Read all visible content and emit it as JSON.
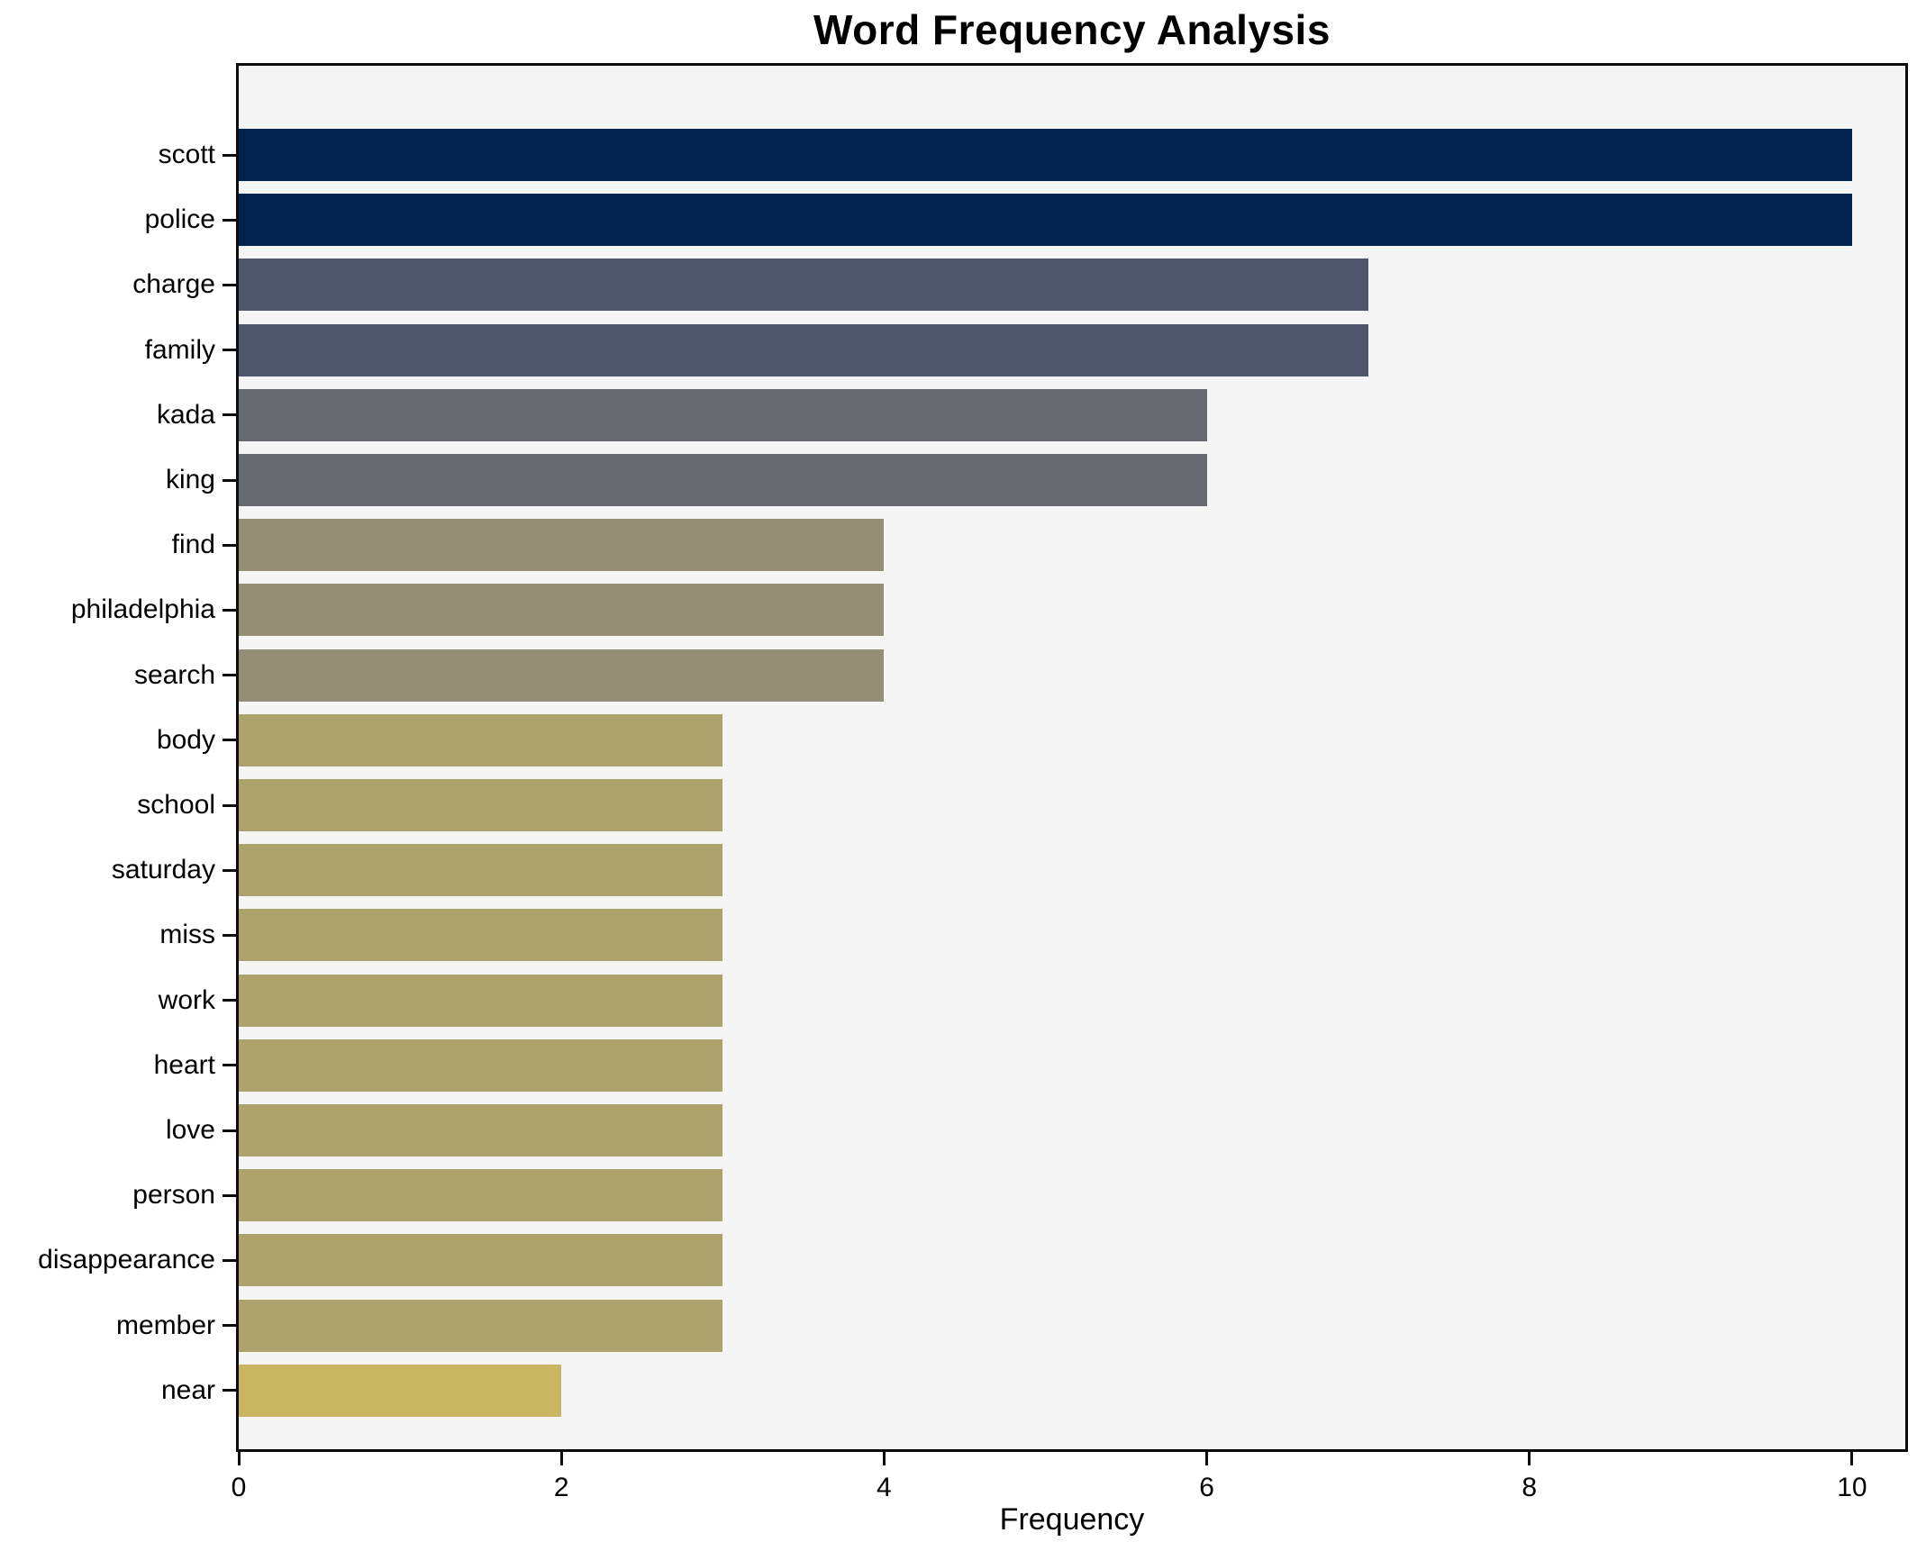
{
  "chart_data": {
    "type": "bar",
    "orientation": "horizontal",
    "title": "Word Frequency Analysis",
    "xlabel": "Frequency",
    "ylabel": "",
    "grid": false,
    "legend": false,
    "xlim": [
      0,
      10.33
    ],
    "x_ticks": [
      0,
      2,
      4,
      6,
      8,
      10
    ],
    "categories": [
      "scott",
      "police",
      "charge",
      "family",
      "kada",
      "king",
      "find",
      "philadelphia",
      "search",
      "body",
      "school",
      "saturday",
      "miss",
      "work",
      "heart",
      "love",
      "person",
      "disappearance",
      "member",
      "near"
    ],
    "values": [
      10,
      10,
      7,
      7,
      6,
      6,
      4,
      4,
      4,
      3,
      3,
      3,
      3,
      3,
      3,
      3,
      3,
      3,
      3,
      2
    ],
    "bar_colors": [
      "#02234e",
      "#02234e",
      "#4d566b",
      "#4d566b",
      "#666a70",
      "#666a70",
      "#948e77",
      "#948e77",
      "#948e77",
      "#ada26b",
      "#ada26b",
      "#ada26b",
      "#ada26b",
      "#ada26b",
      "#ada26b",
      "#ada26b",
      "#ada26b",
      "#ada26b",
      "#ada26b",
      "#c9b562"
    ],
    "plot_background": "#f5f5f6",
    "figure_background": "#ffffff",
    "spine_color": "#0b0b0b"
  }
}
